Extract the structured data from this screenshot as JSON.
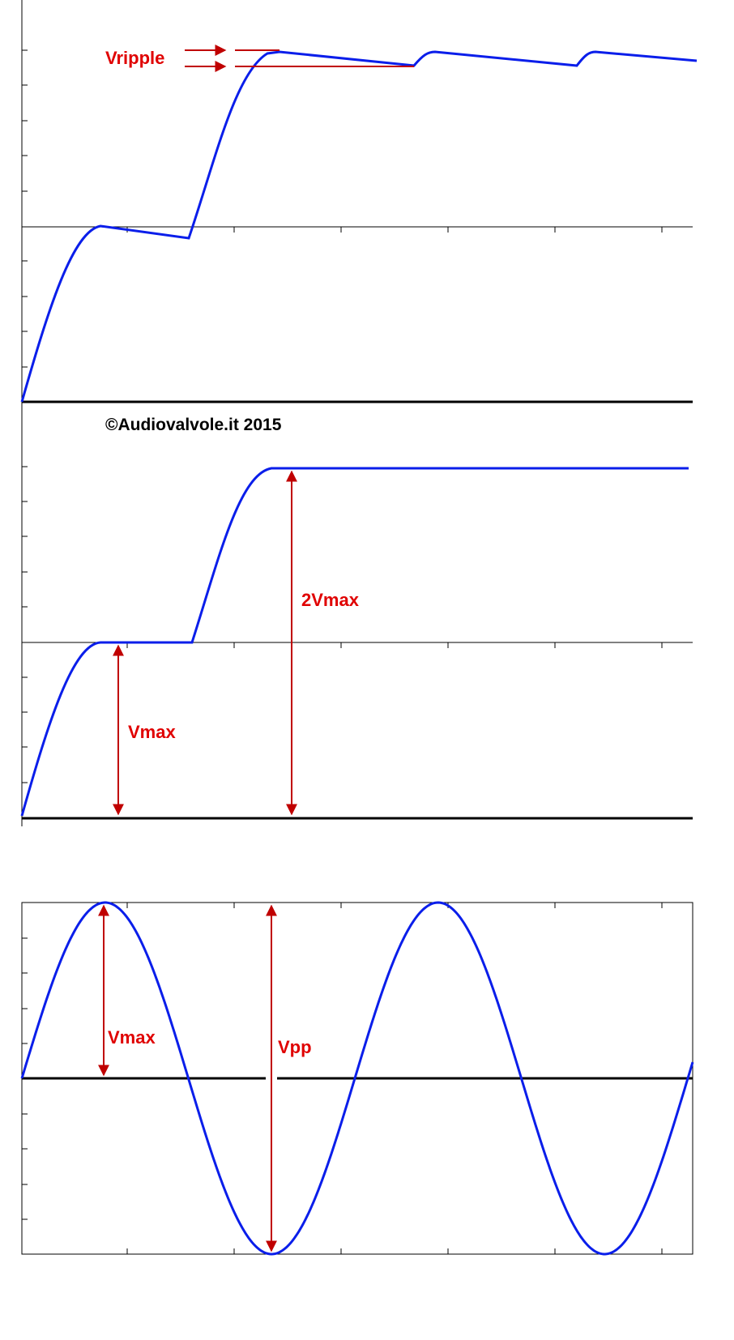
{
  "panels": [
    {
      "labels": [
        "Vripple"
      ]
    },
    {
      "watermark": "©Audiovalvole.it 2015",
      "labels": [
        "2Vmax",
        "Vmax"
      ]
    },
    {
      "labels": [
        "Vmax",
        "Vpp"
      ]
    }
  ]
}
